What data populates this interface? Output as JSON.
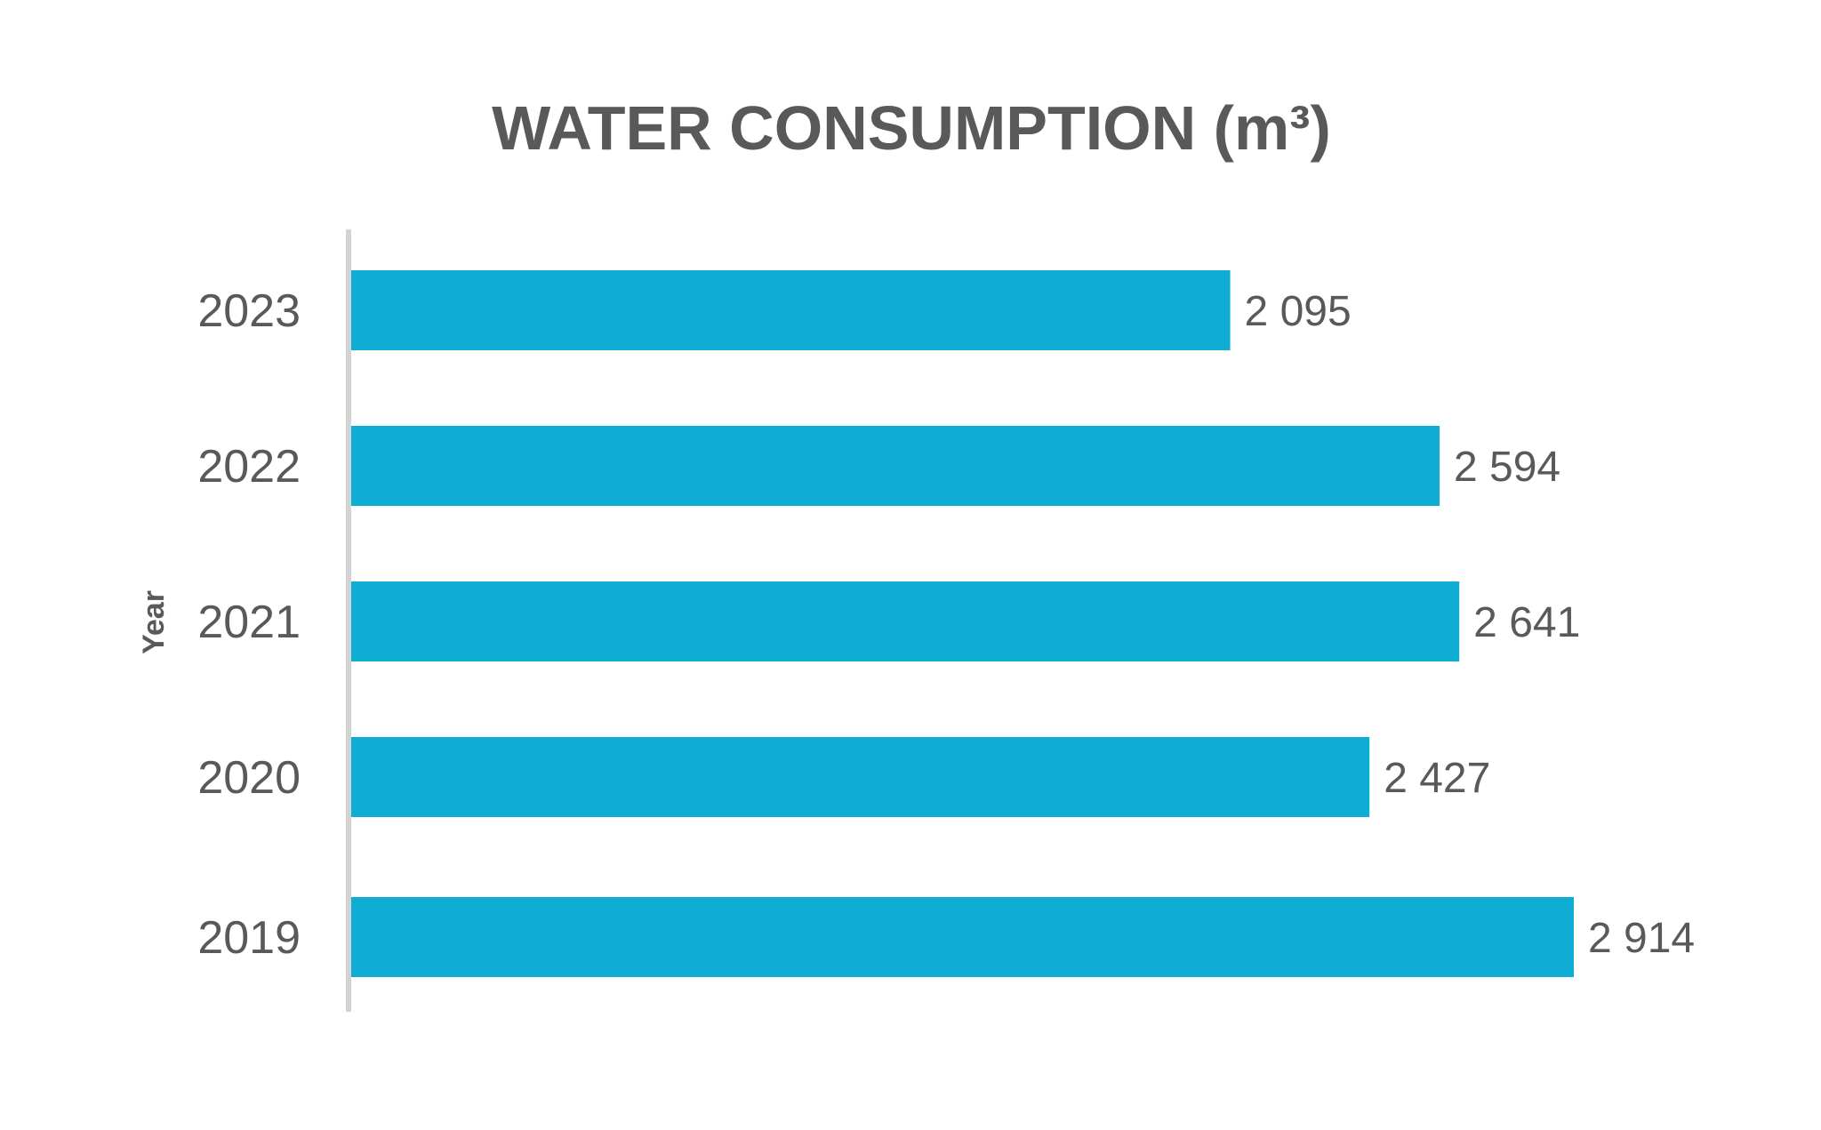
{
  "chart_data": {
    "type": "bar",
    "orientation": "horizontal",
    "title": "WATER CONSUMPTION (m³)",
    "xlabel": "",
    "ylabel": "Year",
    "categories": [
      "2023",
      "2022",
      "2021",
      "2020",
      "2019"
    ],
    "values": [
      2095,
      2594,
      2641,
      2427,
      2914
    ],
    "value_labels": [
      "2 095",
      "2 594",
      "2 641",
      "2 427",
      "2 914"
    ],
    "xlim": [
      0,
      3300
    ],
    "grid": false,
    "legend": "none",
    "bar_color": "#0fadd3",
    "axis_color": "#d3d3d3",
    "text_color": "#595959"
  }
}
